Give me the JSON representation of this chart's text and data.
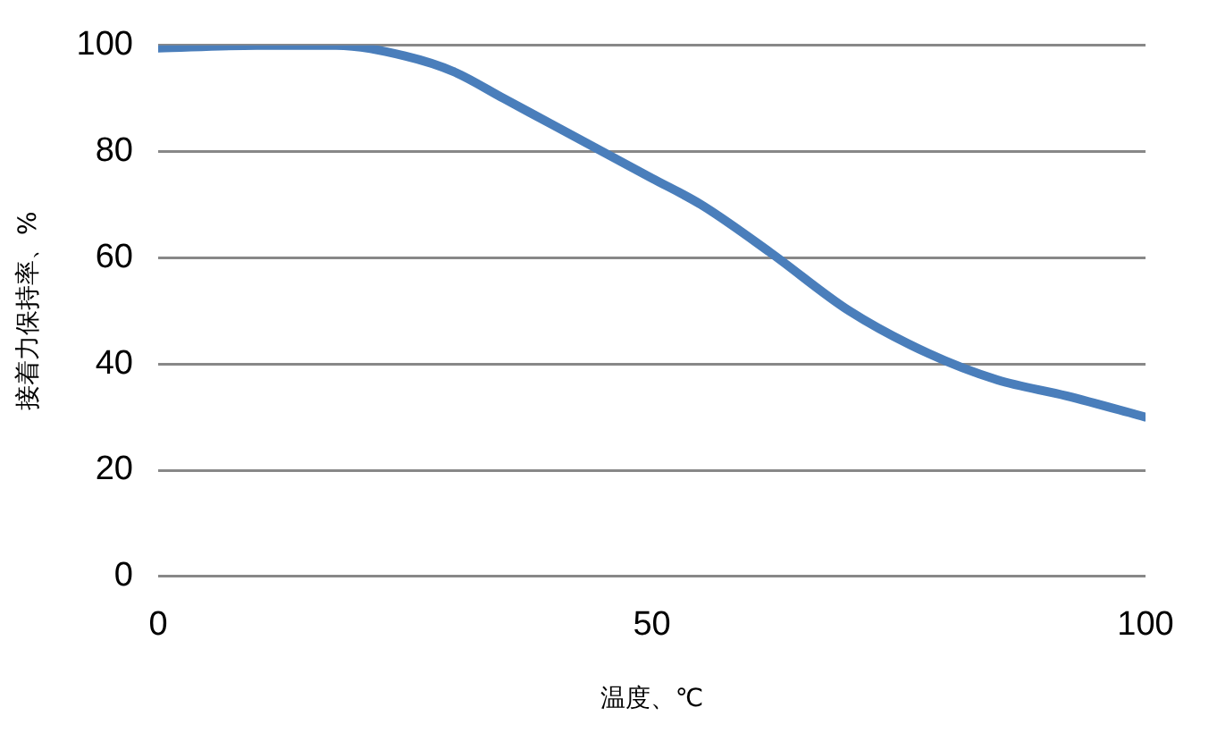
{
  "chart_data": {
    "type": "line",
    "xlabel": "温度、℃",
    "ylabel": "接着力保持率、%",
    "x": [
      0,
      10,
      18,
      25,
      30,
      35,
      40,
      45,
      50,
      55,
      62,
      70,
      78,
      85,
      92,
      100
    ],
    "series": [
      {
        "color": "#4a7ebb",
        "values": [
          99.5,
          100,
          100,
          98,
          95,
          90,
          85,
          80,
          75,
          70,
          61,
          50,
          42,
          37,
          34,
          30
        ]
      }
    ],
    "xlim": [
      0,
      100
    ],
    "xticks": [
      0,
      50,
      100
    ],
    "ylim": [
      0,
      100
    ],
    "yticks": [
      0,
      20,
      40,
      60,
      80,
      100
    ],
    "grid": "y",
    "legend": false,
    "marker": "none",
    "line_style": "solid"
  }
}
